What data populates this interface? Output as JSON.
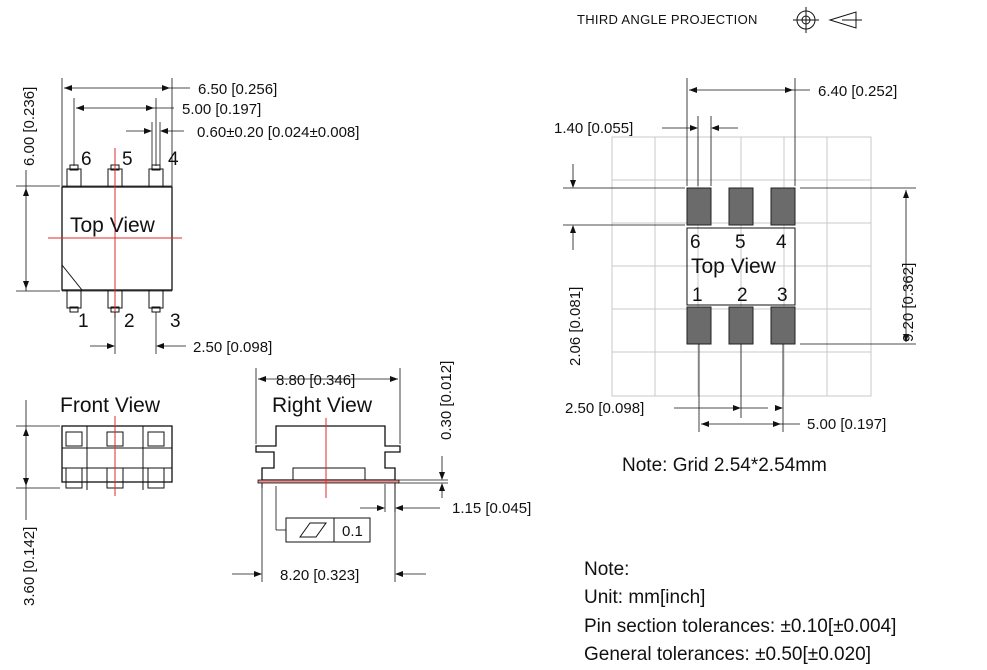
{
  "header": {
    "projection": "THIRD ANGLE PROJECTION"
  },
  "top_view": {
    "title": "Top View",
    "pins_top": [
      "6",
      "5",
      "4"
    ],
    "pins_bottom": [
      "1",
      "2",
      "3"
    ],
    "dim_overall_width": "6.50 [0.256]",
    "dim_pin_span": "5.00 [0.197]",
    "dim_pin_width": "0.60±0.20 [0.024±0.008]",
    "dim_body_height": "6.00 [0.236]",
    "dim_pitch": "2.50 [0.098]"
  },
  "front_view": {
    "title": "Front View",
    "dim_height": "3.60 [0.142]"
  },
  "right_view": {
    "title": "Right View",
    "dim_top_width": "8.80 [0.346]",
    "dim_standoff": "0.30 [0.012]",
    "dim_lead": "1.15 [0.045]",
    "dim_bottom_width": "8.20 [0.323]",
    "flatness_value": "0.1"
  },
  "footprint": {
    "title": "Top View",
    "pins_top": [
      "6",
      "5",
      "4"
    ],
    "pins_bottom": [
      "1",
      "2",
      "3"
    ],
    "dim_width": "6.40 [0.252]",
    "dim_pad_width": "1.40 [0.055]",
    "dim_pad_length": "2.06 [0.081]",
    "dim_height": "9.20 [0.362]",
    "dim_pitch": "2.50 [0.098]",
    "dim_span": "5.00 [0.197]",
    "grid_note": "Note: Grid 2.54*2.54mm"
  },
  "notes": {
    "heading": "Note:",
    "unit": "Unit: mm[inch]",
    "pin_tol": "Pin section tolerances: ±0.10[±0.004]",
    "general_tol": "General tolerances: ±0.50[±0.020]"
  }
}
